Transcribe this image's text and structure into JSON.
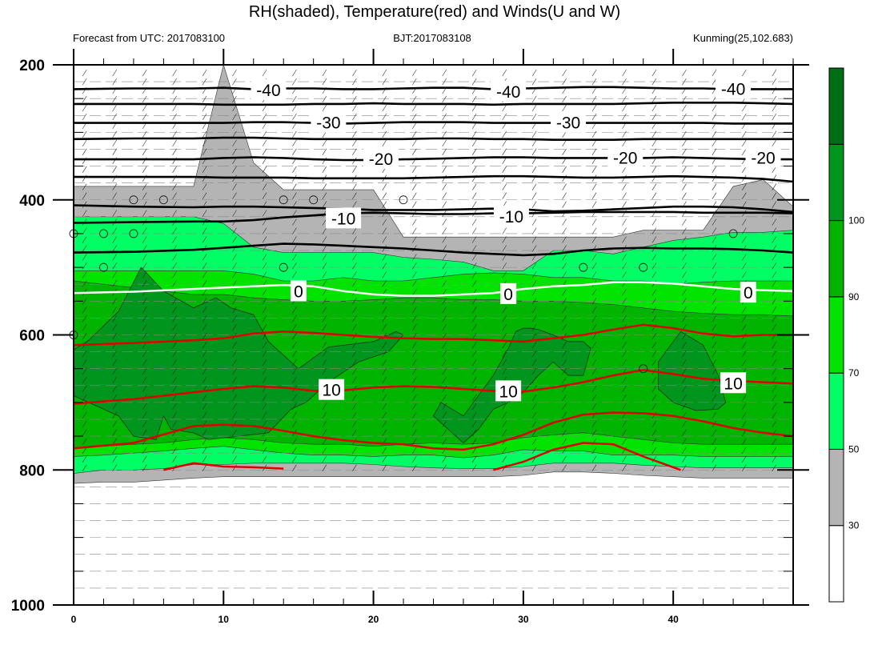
{
  "chart_data": {
    "type": "heatmap",
    "title": "RH(shaded), Temperature(red) and Winds(U and W)",
    "subtitle_left": "Forecast from UTC: 2017083100",
    "subtitle_center": "BJT:2017083108",
    "subtitle_right": "Kunming(25,102.683)",
    "xlabel": "",
    "ylabel": "",
    "x_range": [
      0,
      48
    ],
    "y_range": [
      1000,
      200
    ],
    "y_axis_inverted": true,
    "x_ticks": [
      "0",
      "10",
      "20",
      "30",
      "40"
    ],
    "y_ticks": [
      "200",
      "400",
      "600",
      "800",
      "1000"
    ],
    "grid": true,
    "rh_colorbar": {
      "labels": [
        "30",
        "50",
        "70",
        "90",
        "100"
      ],
      "colors": [
        "#ffffff",
        "#b4b4b4",
        "#00ff64",
        "#00e400",
        "#00b400",
        "#00961e",
        "#006e14"
      ]
    },
    "rh_field": {
      "band_colors": [
        "#b4b4b4",
        "#00ff64",
        "#00e400",
        "#00b400",
        "#00961e"
      ],
      "time": [
        0,
        2,
        4,
        6,
        8,
        10,
        12,
        14,
        16,
        18,
        20,
        22,
        24,
        26,
        28,
        30,
        32,
        34,
        36,
        38,
        40,
        42,
        44,
        46,
        48
      ],
      "gray_top": [
        380,
        380,
        380,
        380,
        380,
        200,
        345,
        385,
        385,
        385,
        385,
        455,
        455,
        455,
        455,
        455,
        455,
        455,
        455,
        445,
        445,
        445,
        380,
        370,
        410
      ],
      "gray_bottom": [
        820,
        818,
        818,
        815,
        812,
        810,
        810,
        810,
        810,
        810,
        810,
        810,
        810,
        810,
        810,
        808,
        803,
        803,
        805,
        808,
        810,
        812,
        812,
        812,
        812
      ],
      "lime_top": [
        425,
        425,
        425,
        425,
        425,
        435,
        470,
        478,
        478,
        478,
        478,
        485,
        488,
        492,
        505,
        505,
        475,
        475,
        480,
        470,
        460,
        455,
        448,
        448,
        445
      ],
      "lime_bottom": [
        805,
        800,
        800,
        798,
        792,
        792,
        790,
        790,
        790,
        790,
        792,
        795,
        797,
        798,
        798,
        795,
        790,
        790,
        790,
        793,
        795,
        797,
        797,
        797,
        797
      ],
      "bright_top": [
        505,
        505,
        505,
        505,
        505,
        505,
        510,
        520,
        520,
        515,
        520,
        520,
        515,
        510,
        508,
        510,
        515,
        515,
        520,
        520,
        525,
        522,
        520,
        520,
        520
      ],
      "bright_bottom": [
        780,
        778,
        775,
        772,
        768,
        765,
        770,
        775,
        778,
        778,
        780,
        778,
        778,
        782,
        778,
        770,
        772,
        772,
        778,
        778,
        778,
        780,
        780,
        780,
        780
      ],
      "green_top": [
        520,
        525,
        530,
        535,
        540,
        540,
        545,
        548,
        550,
        550,
        548,
        545,
        545,
        548,
        548,
        550,
        550,
        552,
        555,
        560,
        565,
        568,
        570,
        570,
        572
      ],
      "green_bottom": [
        768,
        765,
        762,
        760,
        755,
        752,
        755,
        760,
        762,
        762,
        765,
        762,
        760,
        762,
        760,
        752,
        748,
        745,
        750,
        755,
        760,
        762,
        762,
        762,
        762
      ]
    },
    "dark_patches": [
      {
        "time": [
          0,
          1,
          3,
          4.5,
          6,
          8,
          9.5,
          10.5,
          12,
          13,
          15,
          17,
          20,
          21.5,
          22,
          21,
          19,
          17,
          16,
          15.5,
          14.5,
          13,
          11,
          9,
          8,
          6.5,
          6,
          5.5,
          4,
          3,
          2,
          1,
          0
        ],
        "pressure": [
          622,
          608,
          565,
          500,
          535,
          560,
          545,
          560,
          570,
          610,
          650,
          618,
          610,
          595,
          600,
          625,
          640,
          670,
          690,
          700,
          710,
          745,
          750,
          755,
          745,
          740,
          720,
          755,
          750,
          720,
          710,
          700,
          690
        ]
      },
      {
        "time": [
          26,
          28,
          29,
          29.5,
          30,
          30.5,
          31,
          32,
          33,
          34,
          34.5,
          34,
          33,
          32,
          31,
          30,
          29,
          28,
          27,
          26,
          25,
          24,
          24.5,
          26
        ],
        "pressure": [
          720,
          660,
          620,
          595,
          590,
          590,
          592,
          600,
          610,
          610,
          620,
          660,
          660,
          640,
          660,
          685,
          700,
          710,
          740,
          760,
          740,
          720,
          700,
          720
        ]
      },
      {
        "time": [
          39,
          40.5,
          42,
          43,
          43.5,
          43,
          41.5,
          40,
          39,
          39
        ],
        "pressure": [
          640,
          595,
          615,
          660,
          700,
          710,
          712,
          700,
          680,
          660
        ]
      }
    ],
    "series": [
      {
        "name": "-40",
        "color": "#000000",
        "time": [
          0,
          4,
          8,
          10,
          12,
          14,
          16,
          18,
          20,
          22,
          24,
          26,
          28,
          30,
          32,
          34,
          36,
          38,
          40,
          42,
          44,
          46,
          48
        ],
        "pressure": [
          236,
          235,
          235,
          234,
          236,
          235,
          235,
          236,
          236,
          235,
          234,
          234,
          236,
          235,
          234,
          233,
          233,
          234,
          235,
          235,
          236,
          236,
          236
        ]
      },
      {
        "name": "-40",
        "color": "#000000",
        "time": [
          0,
          4,
          8,
          10,
          12,
          14,
          16,
          18,
          20,
          22,
          24,
          26,
          28,
          30,
          32,
          34,
          36,
          38,
          40,
          42,
          44,
          46,
          48
        ],
        "pressure": [
          258,
          258,
          258,
          259,
          259,
          259,
          258,
          258,
          257,
          258,
          258,
          258,
          259,
          258,
          258,
          258,
          258,
          257,
          256,
          256,
          256,
          257,
          258
        ]
      },
      {
        "name": "-30",
        "color": "#000000",
        "time": [
          0,
          4,
          8,
          10,
          12,
          14,
          16,
          18,
          20,
          22,
          24,
          26,
          28,
          30,
          32,
          34,
          36,
          38,
          40,
          42,
          44,
          46,
          48
        ],
        "pressure": [
          286,
          286,
          286,
          286,
          285,
          285,
          286,
          287,
          286,
          285,
          285,
          285,
          286,
          286,
          286,
          286,
          286,
          286,
          286,
          286,
          287,
          287,
          287
        ]
      },
      {
        "name": "-30",
        "color": "#000000",
        "time": [
          0,
          4,
          8,
          10,
          12,
          14,
          16,
          18,
          20,
          22,
          24,
          26,
          28,
          30,
          32,
          34,
          36,
          38,
          40,
          42,
          44,
          46,
          48
        ],
        "pressure": [
          310,
          309,
          309,
          308,
          308,
          309,
          310,
          310,
          310,
          310,
          309,
          309,
          310,
          310,
          311,
          311,
          311,
          310,
          310,
          310,
          310,
          310,
          310
        ]
      },
      {
        "name": "-20",
        "color": "#000000",
        "time": [
          0,
          4,
          8,
          10,
          12,
          14,
          16,
          18,
          20,
          22,
          24,
          26,
          28,
          30,
          32,
          34,
          36,
          38,
          40,
          42,
          44,
          46,
          48
        ],
        "pressure": [
          340,
          340,
          340,
          338,
          337,
          338,
          340,
          341,
          341,
          340,
          339,
          338,
          337,
          337,
          338,
          338,
          338,
          338,
          337,
          338,
          339,
          340,
          340
        ]
      },
      {
        "name": "-20",
        "color": "#000000",
        "time": [
          0,
          4,
          8,
          10,
          12,
          14,
          16,
          18,
          20,
          22,
          24,
          26,
          28,
          30,
          32,
          34,
          36,
          38,
          40,
          42,
          44,
          46,
          48
        ],
        "pressure": [
          366,
          366,
          366,
          367,
          367,
          367,
          368,
          368,
          368,
          368,
          367,
          366,
          365,
          365,
          366,
          367,
          367,
          366,
          365,
          366,
          367,
          369,
          373
        ]
      },
      {
        "name": "-10",
        "color": "#000000",
        "time": [
          0,
          4,
          8,
          10,
          12,
          14,
          16,
          18,
          20,
          22,
          24,
          26,
          28,
          30,
          32,
          34,
          36,
          38,
          40,
          42,
          44,
          46,
          48
        ],
        "pressure": [
          408,
          410,
          411,
          410,
          410,
          411,
          412,
          413,
          415,
          415,
          415,
          414,
          413,
          414,
          417,
          416,
          414,
          412,
          410,
          410,
          411,
          414,
          418
        ]
      },
      {
        "name": "-10",
        "color": "#000000",
        "time": [
          0,
          4,
          8,
          10,
          12,
          14,
          16,
          18,
          20,
          22,
          24,
          26,
          28,
          30,
          32,
          34,
          36,
          38,
          40,
          42,
          44,
          46,
          48
        ],
        "pressure": [
          434,
          433,
          432,
          432,
          430,
          426,
          423,
          420,
          419,
          420,
          421,
          421,
          420,
          420,
          419,
          418,
          418,
          418,
          418,
          419,
          419,
          419,
          420
        ]
      },
      {
        "name": "",
        "color": "#000000",
        "time": [
          0,
          4,
          8,
          10,
          12,
          14,
          16,
          18,
          20,
          22,
          24,
          26,
          28,
          30,
          32,
          34,
          36,
          38,
          40,
          42,
          44,
          46,
          48
        ],
        "pressure": [
          478,
          477,
          474,
          471,
          468,
          465,
          466,
          468,
          470,
          472,
          475,
          478,
          480,
          482,
          480,
          475,
          472,
          471,
          472,
          472,
          473,
          475,
          478
        ]
      },
      {
        "name": "0",
        "color": "#ffffff",
        "time": [
          0,
          4,
          8,
          10,
          12,
          14,
          16,
          18,
          20,
          22,
          24,
          26,
          28,
          30,
          32,
          34,
          36,
          38,
          40,
          42,
          44,
          46,
          48
        ],
        "pressure": [
          538,
          536,
          532,
          530,
          528,
          526,
          528,
          535,
          540,
          542,
          542,
          540,
          538,
          532,
          528,
          526,
          522,
          522,
          524,
          528,
          532,
          534,
          535
        ]
      },
      {
        "name": "",
        "color": "#e00000",
        "time": [
          0,
          4,
          8,
          10,
          12,
          14,
          16,
          18,
          20,
          22,
          24,
          26,
          28,
          30,
          32,
          34,
          36,
          38,
          40,
          42,
          44,
          46,
          48
        ],
        "pressure": [
          615,
          612,
          608,
          605,
          598,
          595,
          597,
          600,
          603,
          605,
          606,
          606,
          608,
          610,
          605,
          600,
          592,
          585,
          590,
          598,
          602,
          600,
          600
        ]
      },
      {
        "name": "10",
        "color": "#e00000",
        "time": [
          0,
          4,
          8,
          10,
          12,
          14,
          16,
          18,
          20,
          22,
          24,
          26,
          28,
          30,
          32,
          34,
          36,
          38,
          40,
          42,
          44,
          46,
          48
        ],
        "pressure": [
          702,
          695,
          685,
          680,
          676,
          678,
          683,
          682,
          678,
          676,
          677,
          680,
          683,
          684,
          678,
          670,
          660,
          652,
          658,
          665,
          668,
          670,
          672
        ]
      },
      {
        "name": "",
        "color": "#e00000",
        "time": [
          0,
          4,
          8,
          10,
          12,
          14,
          16,
          18,
          20,
          22,
          24,
          26,
          28,
          30,
          32,
          34,
          36,
          38,
          40,
          42,
          44,
          46,
          48
        ],
        "pressure": [
          768,
          760,
          735,
          733,
          735,
          742,
          750,
          756,
          760,
          762,
          768,
          770,
          762,
          748,
          730,
          718,
          715,
          716,
          720,
          728,
          738,
          745,
          750
        ]
      },
      {
        "name": "",
        "color": "#e00000",
        "time": [
          6,
          8,
          10,
          12,
          14
        ],
        "pressure": [
          800,
          790,
          795,
          796,
          798
        ]
      },
      {
        "name": "",
        "color": "#e00000",
        "time": [
          28,
          30,
          32,
          34,
          36,
          38,
          40.5
        ],
        "pressure": [
          800,
          788,
          770,
          760,
          762,
          780,
          800
        ]
      }
    ],
    "contour_labels": [
      {
        "text": "-40",
        "x": 13.0,
        "y": 238
      },
      {
        "text": "-40",
        "x": 29.0,
        "y": 240
      },
      {
        "text": "-40",
        "x": 44.0,
        "y": 236
      },
      {
        "text": "-30",
        "x": 17.0,
        "y": 286
      },
      {
        "text": "-30",
        "x": 33.0,
        "y": 286
      },
      {
        "text": "-20",
        "x": 20.5,
        "y": 340
      },
      {
        "text": "-20",
        "x": 36.8,
        "y": 338
      },
      {
        "text": "-20",
        "x": 46.0,
        "y": 338
      },
      {
        "text": "-10",
        "x": 18.0,
        "y": 428
      },
      {
        "text": "-10",
        "x": 29.2,
        "y": 425
      },
      {
        "text": "0",
        "x": 15.0,
        "y": 536
      },
      {
        "text": "0",
        "x": 29.0,
        "y": 540
      },
      {
        "text": "0",
        "x": 45.0,
        "y": 538
      },
      {
        "text": "10",
        "x": 17.2,
        "y": 682
      },
      {
        "text": "10",
        "x": 29.0,
        "y": 684
      },
      {
        "text": "10",
        "x": 44.0,
        "y": 672
      }
    ],
    "wind_circles": {
      "time": [
        4,
        6,
        14,
        16,
        22,
        0,
        2,
        4,
        2,
        14,
        34,
        38,
        44,
        0,
        38
      ],
      "pressure": [
        400,
        400,
        400,
        400,
        400,
        450,
        450,
        450,
        500,
        500,
        500,
        500,
        450,
        600,
        650
      ]
    }
  }
}
